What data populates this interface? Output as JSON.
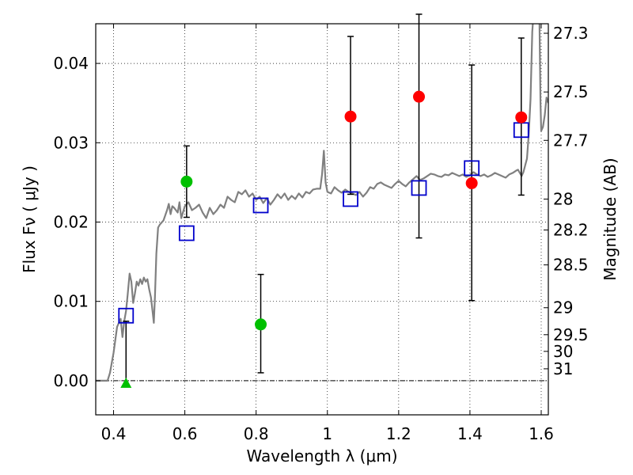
{
  "chart_data": {
    "type": "scatter",
    "xlabel": "Wavelength  λ (μm)",
    "ylabel": "Flux  Fν  ( μJy )",
    "y2label": "Magnitude (AB)",
    "xlim": [
      0.35,
      1.62
    ],
    "ylim": [
      -0.0043,
      0.045
    ],
    "x_ticks": [
      0.4,
      0.6,
      0.8,
      1.0,
      1.2,
      1.4,
      1.6
    ],
    "x_tick_labels": [
      "0.4",
      "0.6",
      "0.8",
      "1",
      "1.2",
      "1.4",
      "1.6"
    ],
    "y_ticks": [
      0.0,
      0.01,
      0.02,
      0.03,
      0.04
    ],
    "y_tick_labels": [
      "0.00",
      "0.01",
      "0.02",
      "0.03",
      "0.04"
    ],
    "mag_ticks": [
      {
        "flux": 0.0438,
        "label": "27.3"
      },
      {
        "flux": 0.0364,
        "label": "27.5"
      },
      {
        "flux": 0.0303,
        "label": "27.7"
      },
      {
        "flux": 0.0229,
        "label": "28"
      },
      {
        "flux": 0.019,
        "label": "28.2"
      },
      {
        "flux": 0.0146,
        "label": "28.5"
      },
      {
        "flux": 0.0092,
        "label": "29"
      },
      {
        "flux": 0.0058,
        "label": "29.5"
      },
      {
        "flux": 0.0037,
        "label": "30"
      },
      {
        "flux": 0.0015,
        "label": "31"
      }
    ],
    "grid": true,
    "colors": {
      "template": "#808080",
      "observed_hst": "#ff0000",
      "observed_optical": "#00c000",
      "model": "#0000cc",
      "errorbar": "#000000"
    },
    "template_sed": [
      [
        0.35,
        0.0
      ],
      [
        0.383,
        0.0
      ],
      [
        0.39,
        0.001
      ],
      [
        0.4,
        0.0035
      ],
      [
        0.41,
        0.0068
      ],
      [
        0.42,
        0.0078
      ],
      [
        0.425,
        0.0055
      ],
      [
        0.43,
        0.0075
      ],
      [
        0.435,
        0.0088
      ],
      [
        0.44,
        0.011
      ],
      [
        0.445,
        0.0135
      ],
      [
        0.45,
        0.0125
      ],
      [
        0.455,
        0.0098
      ],
      [
        0.46,
        0.011
      ],
      [
        0.465,
        0.0125
      ],
      [
        0.47,
        0.012
      ],
      [
        0.475,
        0.0128
      ],
      [
        0.48,
        0.0122
      ],
      [
        0.485,
        0.013
      ],
      [
        0.49,
        0.0125
      ],
      [
        0.495,
        0.0128
      ],
      [
        0.5,
        0.0115
      ],
      [
        0.505,
        0.0105
      ],
      [
        0.51,
        0.0085
      ],
      [
        0.513,
        0.0073
      ],
      [
        0.516,
        0.0105
      ],
      [
        0.52,
        0.016
      ],
      [
        0.525,
        0.0193
      ],
      [
        0.53,
        0.0197
      ],
      [
        0.54,
        0.0202
      ],
      [
        0.55,
        0.0215
      ],
      [
        0.555,
        0.0223
      ],
      [
        0.56,
        0.021
      ],
      [
        0.565,
        0.022
      ],
      [
        0.57,
        0.0218
      ],
      [
        0.58,
        0.0212
      ],
      [
        0.585,
        0.0225
      ],
      [
        0.59,
        0.0205
      ],
      [
        0.6,
        0.022
      ],
      [
        0.61,
        0.0225
      ],
      [
        0.62,
        0.0215
      ],
      [
        0.63,
        0.0218
      ],
      [
        0.64,
        0.0222
      ],
      [
        0.65,
        0.0212
      ],
      [
        0.66,
        0.0205
      ],
      [
        0.67,
        0.0218
      ],
      [
        0.68,
        0.021
      ],
      [
        0.69,
        0.0215
      ],
      [
        0.7,
        0.0222
      ],
      [
        0.71,
        0.0218
      ],
      [
        0.72,
        0.0232
      ],
      [
        0.73,
        0.0228
      ],
      [
        0.74,
        0.0225
      ],
      [
        0.75,
        0.0238
      ],
      [
        0.76,
        0.0235
      ],
      [
        0.77,
        0.024
      ],
      [
        0.78,
        0.0232
      ],
      [
        0.79,
        0.0236
      ],
      [
        0.8,
        0.0228
      ],
      [
        0.81,
        0.0232
      ],
      [
        0.82,
        0.0224
      ],
      [
        0.83,
        0.023
      ],
      [
        0.84,
        0.0222
      ],
      [
        0.85,
        0.0228
      ],
      [
        0.86,
        0.0235
      ],
      [
        0.87,
        0.023
      ],
      [
        0.88,
        0.0236
      ],
      [
        0.89,
        0.0228
      ],
      [
        0.9,
        0.0233
      ],
      [
        0.91,
        0.0229
      ],
      [
        0.92,
        0.0236
      ],
      [
        0.93,
        0.0231
      ],
      [
        0.94,
        0.0238
      ],
      [
        0.95,
        0.0236
      ],
      [
        0.96,
        0.0241
      ],
      [
        0.97,
        0.0242
      ],
      [
        0.98,
        0.0242
      ],
      [
        0.985,
        0.026
      ],
      [
        0.99,
        0.029
      ],
      [
        0.995,
        0.025
      ],
      [
        1.0,
        0.0238
      ],
      [
        1.01,
        0.0236
      ],
      [
        1.02,
        0.0244
      ],
      [
        1.03,
        0.024
      ],
      [
        1.04,
        0.0237
      ],
      [
        1.05,
        0.0241
      ],
      [
        1.06,
        0.0238
      ],
      [
        1.07,
        0.0236
      ],
      [
        1.08,
        0.0234
      ],
      [
        1.09,
        0.0238
      ],
      [
        1.1,
        0.0232
      ],
      [
        1.11,
        0.0237
      ],
      [
        1.12,
        0.0244
      ],
      [
        1.13,
        0.0242
      ],
      [
        1.14,
        0.0248
      ],
      [
        1.15,
        0.025
      ],
      [
        1.16,
        0.0247
      ],
      [
        1.17,
        0.0245
      ],
      [
        1.18,
        0.0243
      ],
      [
        1.19,
        0.0248
      ],
      [
        1.2,
        0.0252
      ],
      [
        1.21,
        0.0248
      ],
      [
        1.22,
        0.0245
      ],
      [
        1.23,
        0.025
      ],
      [
        1.24,
        0.0254
      ],
      [
        1.25,
        0.0258
      ],
      [
        1.26,
        0.0253
      ],
      [
        1.27,
        0.0255
      ],
      [
        1.28,
        0.0258
      ],
      [
        1.29,
        0.0261
      ],
      [
        1.3,
        0.026
      ],
      [
        1.31,
        0.0258
      ],
      [
        1.32,
        0.0257
      ],
      [
        1.33,
        0.026
      ],
      [
        1.34,
        0.0259
      ],
      [
        1.35,
        0.0262
      ],
      [
        1.36,
        0.026
      ],
      [
        1.37,
        0.0258
      ],
      [
        1.38,
        0.026
      ],
      [
        1.39,
        0.0257
      ],
      [
        1.4,
        0.0259
      ],
      [
        1.41,
        0.0263
      ],
      [
        1.42,
        0.026
      ],
      [
        1.43,
        0.0258
      ],
      [
        1.44,
        0.026
      ],
      [
        1.45,
        0.0257
      ],
      [
        1.46,
        0.0259
      ],
      [
        1.47,
        0.0262
      ],
      [
        1.48,
        0.026
      ],
      [
        1.49,
        0.0258
      ],
      [
        1.5,
        0.0256
      ],
      [
        1.51,
        0.026
      ],
      [
        1.52,
        0.0262
      ],
      [
        1.53,
        0.0265
      ],
      [
        1.535,
        0.0266
      ],
      [
        1.54,
        0.0262
      ],
      [
        1.545,
        0.0258
      ],
      [
        1.55,
        0.0263
      ],
      [
        1.56,
        0.028
      ],
      [
        1.565,
        0.031
      ],
      [
        1.57,
        0.0355
      ],
      [
        1.575,
        0.044
      ],
      [
        1.578,
        0.046
      ],
      [
        1.59,
        0.046
      ],
      [
        1.595,
        0.046
      ],
      [
        1.598,
        0.035
      ],
      [
        1.6,
        0.0315
      ],
      [
        1.605,
        0.032
      ],
      [
        1.61,
        0.0335
      ],
      [
        1.615,
        0.0357
      ],
      [
        1.62,
        0.035
      ]
    ],
    "observed_hst": [
      {
        "x": 1.065,
        "y": 0.0333,
        "yerr_low": 0.0235,
        "yerr_high": 0.0434
      },
      {
        "x": 1.257,
        "y": 0.0358,
        "yerr_low": 0.018,
        "yerr_high": 0.0462
      },
      {
        "x": 1.405,
        "y": 0.0249,
        "yerr_low": 0.0101,
        "yerr_high": 0.0398
      },
      {
        "x": 1.544,
        "y": 0.0332,
        "yerr_low": 0.0234,
        "yerr_high": 0.0432
      }
    ],
    "observed_optical": [
      {
        "x": 0.605,
        "y": 0.0251,
        "yerr_low": 0.0206,
        "yerr_high": 0.0296
      },
      {
        "x": 0.813,
        "y": 0.0071,
        "yerr_low": 0.001,
        "yerr_high": 0.0134
      }
    ],
    "upper_limit": {
      "x": 0.435,
      "y": -0.0003,
      "yerr_low": -0.0003,
      "yerr_high": 0.0075
    },
    "model_fluxes": [
      {
        "x": 0.435,
        "y": 0.0082
      },
      {
        "x": 0.605,
        "y": 0.0186
      },
      {
        "x": 0.813,
        "y": 0.0221
      },
      {
        "x": 1.065,
        "y": 0.0229
      },
      {
        "x": 1.257,
        "y": 0.0243
      },
      {
        "x": 1.405,
        "y": 0.0268
      },
      {
        "x": 1.544,
        "y": 0.0316
      }
    ]
  }
}
